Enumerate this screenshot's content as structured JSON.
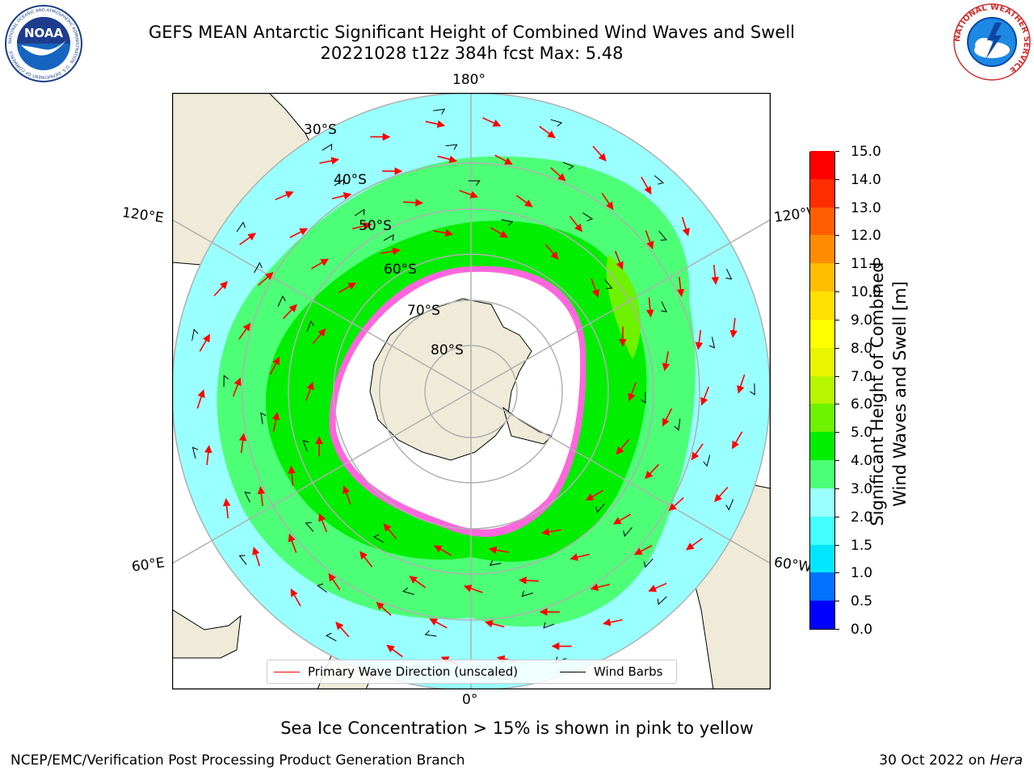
{
  "header": {
    "title_line1": "GEFS MEAN Antarctic Significant Height of Combined Wind Waves and Swell",
    "title_line2": "20221028 t12z 384h fcst   Max: 5.48"
  },
  "logos": {
    "left": "NOAA",
    "left_ring_text": "NATIONAL OCEANIC AND ATMOSPHERIC ADMINISTRATION · U.S. DEPARTMENT OF COMMERCE",
    "right_ring_text": "NATIONAL WEATHER SERVICE"
  },
  "map": {
    "longitude_labels": {
      "top": "180°",
      "bottom": "0°",
      "upper_left": "120°E",
      "upper_right": "120°W",
      "lower_left": "60°E",
      "lower_right": "60°W"
    },
    "latitude_labels": [
      "30°S",
      "40°S",
      "50°S",
      "60°S",
      "70°S",
      "80°S"
    ],
    "colors": {
      "land": "#efebd8",
      "ice_sheet": "#ffffff",
      "grid": "#b0b0b0",
      "wave_arrow": "#ff0000",
      "wind_barb": "#000000"
    }
  },
  "colorbar": {
    "title_line1": "Significant Height of Combined",
    "title_line2": "Wind Waves and Swell [m]",
    "ticks": [
      "0.0",
      "0.5",
      "1.0",
      "1.5",
      "2.0",
      "3.0",
      "4.0",
      "5.0",
      "6.0",
      "7.0",
      "8.0",
      "9.0",
      "10.0",
      "11.0",
      "12.0",
      "13.0",
      "14.0",
      "15.0"
    ],
    "colors": [
      "#0000ff",
      "#0072ff",
      "#00e6ff",
      "#44ffff",
      "#99ffff",
      "#4dff77",
      "#00ee00",
      "#6ef200",
      "#b8f500",
      "#e8f400",
      "#ffff00",
      "#ffe000",
      "#ffbf00",
      "#ff8c00",
      "#ff5e00",
      "#ff2d00",
      "#ff0000"
    ]
  },
  "legend": {
    "items": [
      {
        "label": "Primary Wave Direction (unscaled)",
        "color": "#ff0000"
      },
      {
        "label": "Wind Barbs",
        "color": "#000000"
      }
    ]
  },
  "subtitle": "Sea Ice Concentration > 15% is shown in pink to yellow",
  "footer": {
    "left": "NCEP/EMC/Verification Post Processing Product Generation Branch",
    "right_date": "30 Oct 2022 on ",
    "right_machine": "Hera"
  }
}
